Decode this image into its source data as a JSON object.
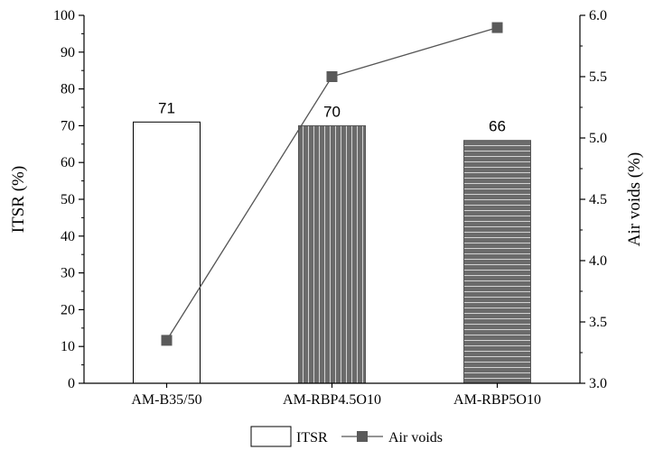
{
  "chart_data": {
    "type": "bar",
    "categories": [
      "AM-B35/50",
      "AM-RBP4.5O10",
      "AM-RBP5O10"
    ],
    "series": [
      {
        "name": "ITSR",
        "kind": "bar",
        "axis": "left",
        "values": [
          71,
          70,
          66
        ],
        "data_labels": [
          "71",
          "70",
          "66"
        ],
        "fills": [
          "white",
          "vertical-stripes",
          "horizontal-stripes"
        ]
      },
      {
        "name": "Air voids",
        "kind": "line",
        "axis": "right",
        "marker": "square",
        "values": [
          3.35,
          5.5,
          5.9
        ]
      }
    ],
    "ylabel": "ITSR (%)",
    "ylabel_right": "Air voids (%)",
    "ylim": [
      0,
      100
    ],
    "ylim_right": [
      3.0,
      6.0
    ],
    "yticks": [
      "0",
      "10",
      "20",
      "30",
      "40",
      "50",
      "60",
      "70",
      "80",
      "90",
      "100"
    ],
    "yticks_right": [
      "3.0",
      "3.5",
      "4.0",
      "4.5",
      "5.0",
      "5.5",
      "6.0"
    ],
    "grid": false,
    "legend_position": "bottom-center",
    "colors": {
      "bar_fill": "#6b6b6b",
      "bar_stripe": "#ffffff",
      "line": "#555555",
      "marker": "#5a5a5a",
      "axis": "#000000"
    }
  }
}
